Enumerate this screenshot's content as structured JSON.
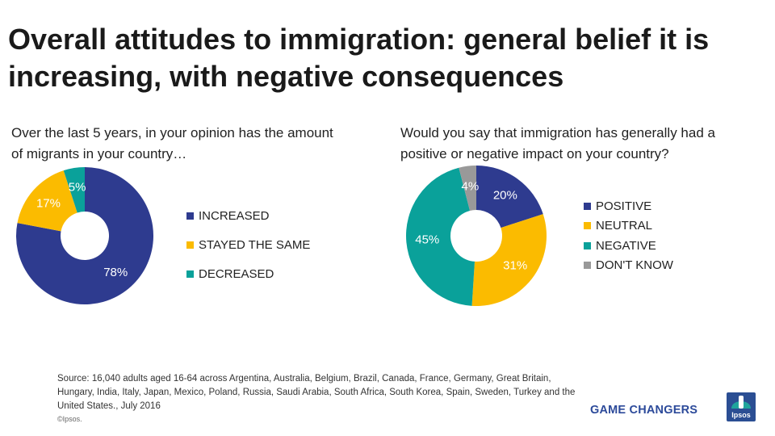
{
  "title": "Overall attitudes to immigration: general belief it is increasing, with negative consequences",
  "chart_data": [
    {
      "type": "pie",
      "title": "Over the last 5 years, in your opinion has the amount of migrants in your country…",
      "categories": [
        "INCREASED",
        "STAYED THE SAME",
        "DECREASED"
      ],
      "values": [
        78,
        17,
        5
      ],
      "value_labels": [
        "78%",
        "17%",
        "5%"
      ],
      "colors": [
        "#2e3b8f",
        "#fbbb00",
        "#0aa19a"
      ],
      "legend_position": "right"
    },
    {
      "type": "pie",
      "title": "Would you say that immigration has generally had a positive or negative impact on your country?",
      "categories": [
        "POSITIVE",
        "NEUTRAL",
        "NEGATIVE",
        "DON'T KNOW"
      ],
      "values": [
        20,
        31,
        45,
        4
      ],
      "value_labels": [
        "20%",
        "31%",
        "45%",
        "4%"
      ],
      "colors": [
        "#2e3b8f",
        "#fbbb00",
        "#0aa19a",
        "#999999"
      ],
      "legend_position": "right"
    }
  ],
  "footer": {
    "source": "Source: 16,040 adults aged 16-64 across  Argentina, Australia, Belgium, Brazil, Canada, France, Germany, Great Britain, Hungary, India, Italy, Japan, Mexico, Poland, Russia, Saudi Arabia, South Africa, South Korea, Spain, Sweden, Turkey and the United States., July 2016",
    "copyright": "©Ipsos.",
    "tagline": "GAME CHANGERS",
    "logo_text": "Ipsos"
  }
}
